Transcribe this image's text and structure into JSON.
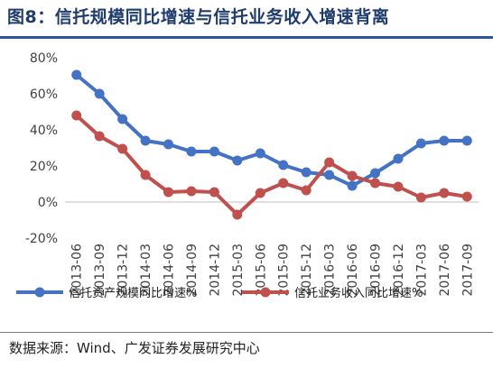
{
  "figure": {
    "title": "图8：信托规模同比增速与信托业务收入增速背离",
    "source": "数据来源：Wind、广发证券发展研究中心"
  },
  "chart_data": {
    "type": "line",
    "categories": [
      "2013-06",
      "2013-09",
      "2013-12",
      "2014-03",
      "2014-06",
      "2014-09",
      "2014-12",
      "2015-03",
      "2015-06",
      "2015-09",
      "2015-12",
      "2016-03",
      "2016-06",
      "2016-09",
      "2016-12",
      "2017-03",
      "2017-06",
      "2017-09"
    ],
    "series": [
      {
        "name": "信托资产规模同比增速%",
        "color": "#4472c4",
        "values": [
          70.5,
          60.0,
          46.0,
          34.0,
          32.0,
          28.0,
          28.0,
          23.0,
          27.0,
          20.5,
          16.5,
          15.0,
          9.0,
          16.0,
          24.0,
          32.5,
          34.0,
          34.0
        ]
      },
      {
        "name": "信托业务收入同比增速%",
        "color": "#c0504d",
        "values": [
          48.0,
          36.5,
          29.5,
          15.0,
          5.5,
          6.0,
          5.5,
          -7.0,
          5.0,
          10.5,
          6.5,
          22.0,
          14.5,
          10.5,
          8.5,
          2.5,
          5.0,
          3.0
        ]
      }
    ],
    "ylim": [
      -20,
      80
    ],
    "yticks": [
      80,
      60,
      40,
      20,
      0,
      -20
    ],
    "ytick_labels": [
      "80%",
      "60%",
      "40%",
      "20%",
      "0%",
      "-20%"
    ],
    "grid": false,
    "legend_position": "bottom"
  }
}
